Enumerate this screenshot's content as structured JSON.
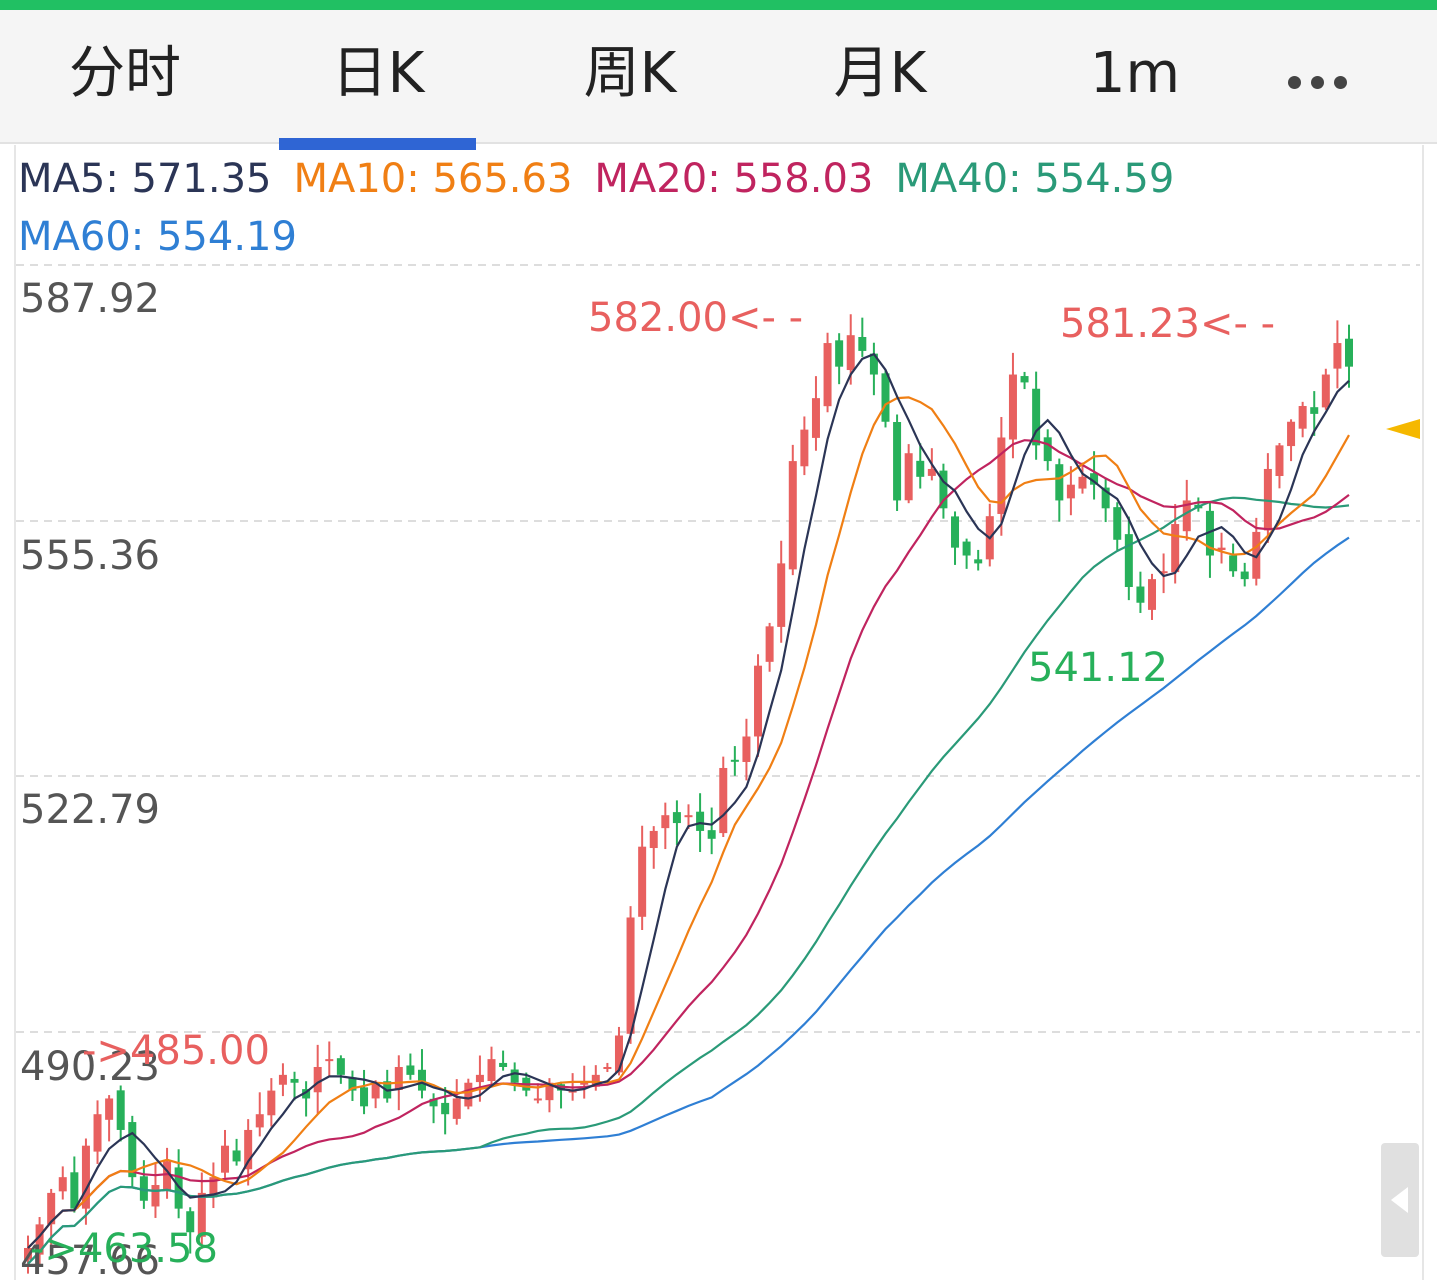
{
  "colors": {
    "top_bar": "#21c063",
    "up": "#e8605f",
    "down": "#27b05a",
    "ma5": "#2b3556",
    "ma10": "#f07f14",
    "ma20": "#c0245f",
    "ma40": "#2a9a78",
    "ma60": "#2f7fd4",
    "grid": "#dddddd",
    "marker": "#f5b800"
  },
  "tabs": [
    {
      "label": "分时",
      "active": false
    },
    {
      "label": "日K",
      "active": true
    },
    {
      "label": "周K",
      "active": false
    },
    {
      "label": "月K",
      "active": false
    },
    {
      "label": "1m",
      "active": false
    }
  ],
  "more_icon": "ellipsis-icon",
  "ma": {
    "ma5": "MA5: 571.35",
    "ma10": "MA10: 565.63",
    "ma20": "MA20: 558.03",
    "ma40": "MA40: 554.59",
    "ma60": "MA60: 554.19"
  },
  "annotations": {
    "high1": "582.00<- -",
    "high2": "581.23<- -",
    "low_mid": "541.12",
    "left_high": "->485.00",
    "left_low": "->463.58"
  },
  "side_handle_icon": "collapse-left-icon",
  "chart_data": {
    "type": "candlestick",
    "y_ticks": [
      "587.92",
      "555.36",
      "522.79",
      "490.23",
      "457.66"
    ],
    "ylim": [
      457.66,
      587.92
    ],
    "grid": true,
    "indicators": [
      "MA5",
      "MA10",
      "MA20",
      "MA40",
      "MA60"
    ],
    "visible_high": 582.0,
    "recent_high": 581.23,
    "mid_low": 541.12,
    "early_high": 485.0,
    "early_low": 463.58,
    "candles_close": [
      463,
      466,
      470,
      472,
      468,
      476,
      480,
      482,
      478,
      472,
      469,
      471,
      474,
      468,
      465,
      470,
      472,
      476,
      474,
      478,
      480,
      483,
      485,
      484,
      482,
      486,
      487,
      485,
      483,
      481,
      484,
      482,
      486,
      485,
      483,
      481,
      480,
      482,
      484,
      485,
      487,
      486,
      484,
      483,
      482,
      484,
      483,
      483,
      484,
      485,
      486,
      490,
      505,
      514,
      516,
      518,
      517,
      518,
      516,
      515,
      524,
      525,
      528,
      537,
      542,
      550,
      563,
      567,
      571,
      578,
      575,
      579,
      577,
      574,
      568,
      558,
      564,
      561,
      562,
      557,
      552,
      551,
      550,
      556,
      566,
      574,
      573,
      565,
      563,
      558,
      560,
      561,
      560,
      557,
      553,
      547,
      545,
      548,
      549,
      555,
      558,
      557,
      551,
      552,
      549,
      548,
      554,
      562,
      565,
      568,
      570,
      569,
      574,
      578,
      575
    ]
  }
}
